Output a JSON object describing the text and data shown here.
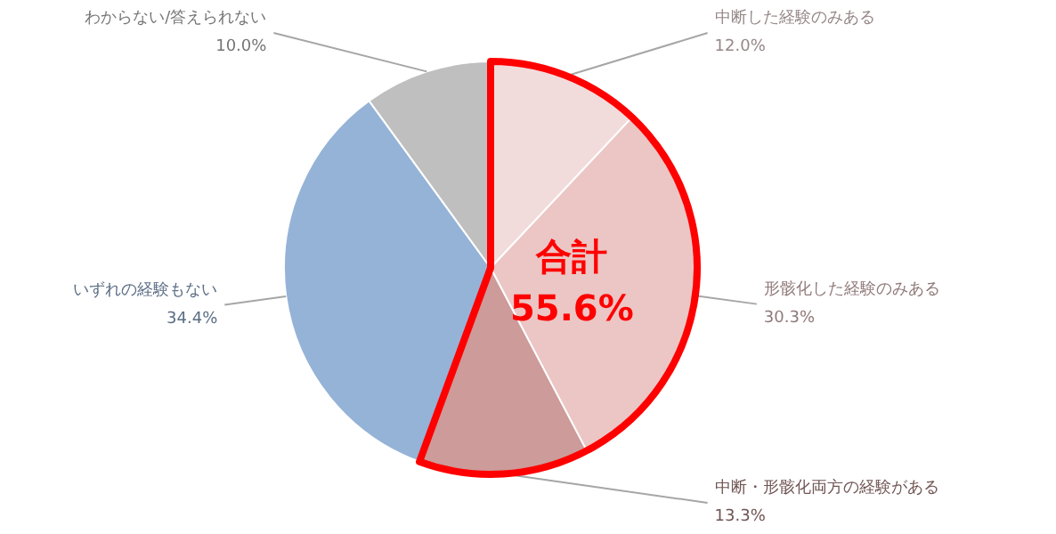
{
  "chart_data": {
    "type": "pie",
    "categories": [
      "中断した経験のみある",
      "形骸化した経験のみある",
      "中断・形骸化両方の経験がある",
      "いずれの経験もない",
      "わからない/答えられない"
    ],
    "values": [
      12.0,
      30.3,
      13.3,
      34.4,
      10.0
    ],
    "colors": [
      "#f2dcdb",
      "#ebc6c5",
      "#cc9b9a",
      "#95b3d7",
      "#bfbfbf"
    ],
    "value_labels": [
      "12.0%",
      "30.3%",
      "13.3%",
      "34.4%",
      "10.0%"
    ],
    "annotations": [
      "合計\n55.6%"
    ]
  }
}
